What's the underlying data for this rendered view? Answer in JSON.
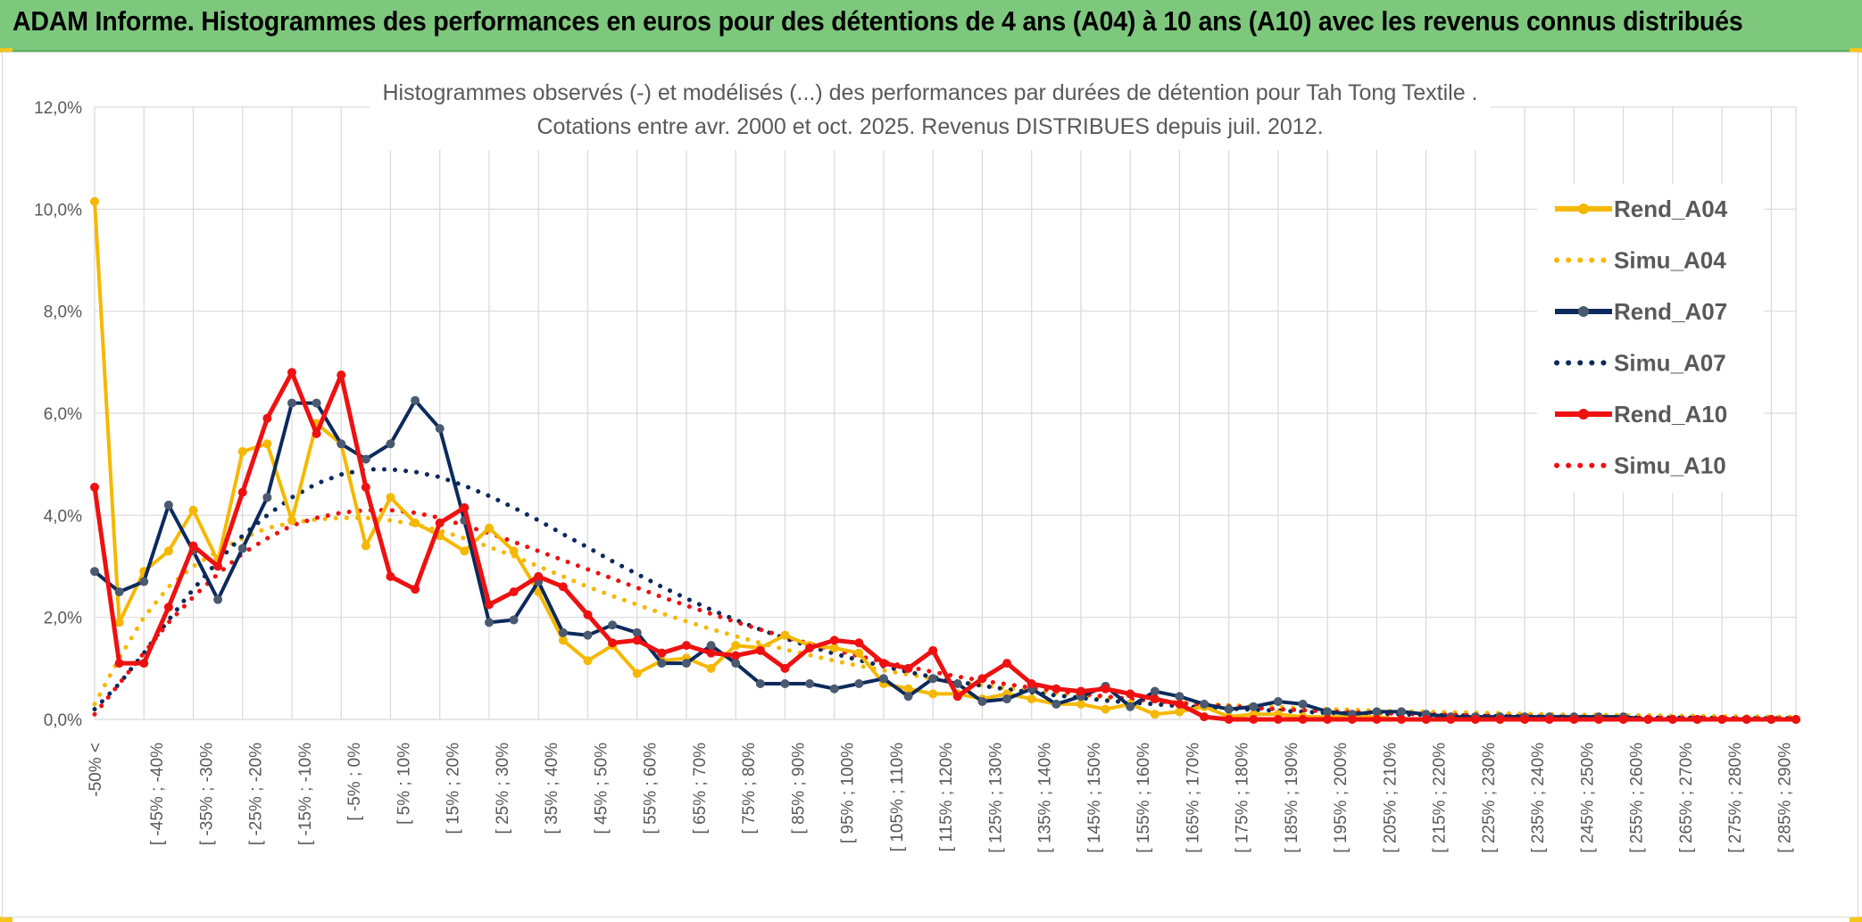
{
  "header": {
    "title": "ADAM Informe. Histogrammes des performances en euros pour des détentions de 4 ans (A04) à 10 ans (A10) avec les revenus connus distribués"
  },
  "colors": {
    "header_bg": "#7ec87e",
    "a04": "#f5b800",
    "a07": "#0d2a5c",
    "a07_marker": "#4a5a70",
    "a10": "#ee1111",
    "grid": "#d9d9d9",
    "axis_text": "#595959"
  },
  "chart_data": {
    "type": "line",
    "title": "Histogrammes observés (-) et modélisés (...) des performances par durées de détention pour Tah Tong Textile .",
    "subtitle": "Cotations entre avr. 2000 et oct. 2025. Revenus DISTRIBUES depuis juil. 2012.",
    "xlabel": "",
    "ylabel": "",
    "ylim": [
      0,
      12
    ],
    "grid": true,
    "legend_position": "right",
    "y_ticks": [
      "0,0%",
      "2,0%",
      "4,0%",
      "6,0%",
      "8,0%",
      "10,0%",
      "12,0%"
    ],
    "x_tick_labels": [
      "-50% <",
      "[ -45% ; -40%",
      "[ -35% ; -30%",
      "[ -25% ; -20%",
      "[ -15% ; -10%",
      "[ -5% ; 0%",
      "[ 5% ; 10%",
      "[ 15% ; 20%",
      "[ 25% ; 30%",
      "[ 35% ; 40%",
      "[ 45% ; 50%",
      "[ 55% ; 60%",
      "[ 65% ; 70%",
      "[ 75% ; 80%",
      "[ 85% ; 90%",
      "[ 95% ; 100%",
      "[ 105% ; 110%",
      "[ 115% ; 120%",
      "[ 125% ; 130%",
      "[ 135% ; 140%",
      "[ 145% ; 150%",
      "[ 155% ; 160%",
      "[ 165% ; 170%",
      "[ 175% ; 180%",
      "[ 185% ; 190%",
      "[ 195% ; 200%",
      "[ 205% ; 210%",
      "[ 215% ; 220%",
      "[ 225% ; 230%",
      "[ 235% ; 240%",
      "[ 245% ; 250%",
      "[ 255% ; 260%",
      "[ 265% ; 270%",
      "[ 275% ; 280%",
      "[ 285% ; 290%"
    ],
    "n_categories": 70,
    "series": [
      {
        "name": "Rend_A04",
        "style": "solid",
        "color": "#f5b800",
        "values": [
          10.15,
          1.9,
          2.9,
          3.3,
          4.1,
          3.1,
          5.25,
          5.4,
          3.9,
          5.8,
          5.4,
          3.4,
          4.35,
          3.85,
          3.6,
          3.3,
          3.75,
          3.3,
          2.5,
          1.55,
          1.15,
          1.45,
          0.9,
          1.15,
          1.2,
          1.0,
          1.45,
          1.4,
          1.65,
          1.45,
          1.4,
          1.3,
          0.7,
          0.6,
          0.5,
          0.5,
          0.4,
          0.5,
          0.4,
          0.3,
          0.3,
          0.2,
          0.3,
          0.1,
          0.15,
          0.25,
          0.05,
          0.1,
          0.1,
          0.05,
          0.05,
          0.05,
          0.05,
          0.0,
          0.0,
          0.0,
          0.0,
          0.0,
          0.0,
          0.0,
          0.0,
          0.0,
          0.0,
          0.0,
          0.0,
          0.0,
          0.0,
          0.0,
          0.0,
          0.0
        ]
      },
      {
        "name": "Simu_A04",
        "style": "dotted",
        "color": "#f5b800",
        "values": [
          0.3,
          1.2,
          2.0,
          2.6,
          3.0,
          3.3,
          3.55,
          3.75,
          3.85,
          3.92,
          3.95,
          3.95,
          3.9,
          3.82,
          3.7,
          3.55,
          3.38,
          3.2,
          3.0,
          2.8,
          2.6,
          2.42,
          2.25,
          2.08,
          1.92,
          1.77,
          1.63,
          1.5,
          1.37,
          1.26,
          1.15,
          1.05,
          0.96,
          0.88,
          0.8,
          0.73,
          0.67,
          0.61,
          0.56,
          0.51,
          0.47,
          0.43,
          0.39,
          0.36,
          0.33,
          0.3,
          0.28,
          0.26,
          0.24,
          0.22,
          0.2,
          0.19,
          0.17,
          0.16,
          0.15,
          0.14,
          0.13,
          0.12,
          0.11,
          0.1,
          0.09,
          0.09,
          0.08,
          0.08,
          0.07,
          0.07,
          0.06,
          0.06,
          0.05,
          0.05
        ]
      },
      {
        "name": "Rend_A07",
        "style": "solid",
        "color": "#0d2a5c",
        "values": [
          2.9,
          2.5,
          2.7,
          4.2,
          3.3,
          2.35,
          3.35,
          4.35,
          6.2,
          6.2,
          5.4,
          5.1,
          5.4,
          6.25,
          5.7,
          3.9,
          1.9,
          1.95,
          2.7,
          1.7,
          1.65,
          1.85,
          1.7,
          1.1,
          1.1,
          1.45,
          1.1,
          0.7,
          0.7,
          0.7,
          0.6,
          0.7,
          0.8,
          0.45,
          0.8,
          0.7,
          0.35,
          0.4,
          0.6,
          0.3,
          0.45,
          0.65,
          0.25,
          0.55,
          0.45,
          0.3,
          0.2,
          0.25,
          0.35,
          0.3,
          0.15,
          0.1,
          0.15,
          0.15,
          0.1,
          0.05,
          0.05,
          0.05,
          0.05,
          0.05,
          0.05,
          0.05,
          0.05,
          0.0,
          0.0,
          0.0,
          0.0,
          0.0,
          0.0,
          0.0
        ]
      },
      {
        "name": "Simu_A07",
        "style": "dotted",
        "color": "#0d2a5c",
        "values": [
          0.2,
          0.7,
          1.3,
          1.95,
          2.55,
          3.1,
          3.6,
          4.0,
          4.35,
          4.62,
          4.8,
          4.9,
          4.9,
          4.85,
          4.75,
          4.58,
          4.38,
          4.15,
          3.9,
          3.63,
          3.37,
          3.1,
          2.85,
          2.6,
          2.37,
          2.15,
          1.95,
          1.76,
          1.59,
          1.43,
          1.29,
          1.16,
          1.04,
          0.93,
          0.83,
          0.74,
          0.66,
          0.59,
          0.53,
          0.47,
          0.42,
          0.37,
          0.33,
          0.3,
          0.26,
          0.23,
          0.21,
          0.19,
          0.17,
          0.15,
          0.13,
          0.12,
          0.11,
          0.1,
          0.09,
          0.08,
          0.07,
          0.06,
          0.06,
          0.05,
          0.05,
          0.04,
          0.04,
          0.03,
          0.03,
          0.03,
          0.02,
          0.02,
          0.02,
          0.02
        ]
      },
      {
        "name": "Rend_A10",
        "style": "solid",
        "color": "#ee1111",
        "values": [
          4.55,
          1.1,
          1.1,
          2.2,
          3.4,
          3.0,
          4.45,
          5.9,
          6.8,
          5.6,
          6.75,
          4.55,
          2.8,
          2.55,
          3.85,
          4.15,
          2.25,
          2.5,
          2.8,
          2.6,
          2.05,
          1.5,
          1.55,
          1.3,
          1.45,
          1.3,
          1.25,
          1.35,
          1.0,
          1.4,
          1.55,
          1.5,
          1.1,
          1.0,
          1.35,
          0.45,
          0.8,
          1.1,
          0.7,
          0.6,
          0.55,
          0.6,
          0.5,
          0.4,
          0.3,
          0.05,
          0.0,
          0.0,
          0.0,
          0.0,
          0.0,
          0.0,
          0.0,
          0.0,
          0.0,
          0.0,
          0.0,
          0.0,
          0.0,
          0.0,
          0.0,
          0.0,
          0.0,
          0.0,
          0.0,
          0.0,
          0.0,
          0.0,
          0.0,
          0.0
        ]
      },
      {
        "name": "Simu_A10",
        "style": "dotted",
        "color": "#ee1111",
        "values": [
          0.1,
          0.7,
          1.3,
          1.9,
          2.4,
          2.85,
          3.25,
          3.55,
          3.8,
          3.95,
          4.05,
          4.1,
          4.1,
          4.05,
          3.95,
          3.8,
          3.65,
          3.48,
          3.3,
          3.12,
          2.94,
          2.76,
          2.58,
          2.4,
          2.23,
          2.07,
          1.91,
          1.76,
          1.62,
          1.48,
          1.36,
          1.24,
          1.13,
          1.03,
          0.93,
          0.84,
          0.76,
          0.69,
          0.62,
          0.56,
          0.5,
          0.45,
          0.4,
          0.36,
          0.32,
          0.29,
          0.26,
          0.23,
          0.2,
          0.18,
          0.16,
          0.14,
          0.13,
          0.11,
          0.1,
          0.09,
          0.08,
          0.07,
          0.06,
          0.05,
          0.05,
          0.04,
          0.04,
          0.03,
          0.03,
          0.03,
          0.02,
          0.02,
          0.02,
          0.02
        ]
      }
    ]
  }
}
